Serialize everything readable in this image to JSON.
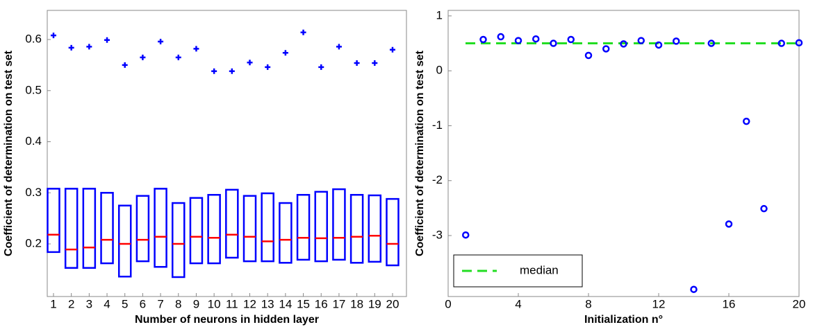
{
  "chart_data": [
    {
      "type": "box",
      "x_label": "Number of neurons in hidden layer",
      "y_label": "Coefficient of determination on test set",
      "x": [
        1,
        2,
        3,
        4,
        5,
        6,
        7,
        8,
        9,
        10,
        11,
        12,
        13,
        14,
        15,
        16,
        17,
        18,
        19,
        20
      ],
      "q1": [
        0.184,
        0.153,
        0.153,
        0.162,
        0.136,
        0.166,
        0.155,
        0.135,
        0.162,
        0.162,
        0.173,
        0.166,
        0.166,
        0.163,
        0.169,
        0.166,
        0.169,
        0.163,
        0.165,
        0.158
      ],
      "median": [
        0.218,
        0.189,
        0.193,
        0.208,
        0.2,
        0.208,
        0.214,
        0.2,
        0.214,
        0.212,
        0.218,
        0.214,
        0.205,
        0.208,
        0.212,
        0.211,
        0.212,
        0.214,
        0.216,
        0.2
      ],
      "q3": [
        0.308,
        0.308,
        0.308,
        0.3,
        0.275,
        0.294,
        0.308,
        0.28,
        0.29,
        0.296,
        0.306,
        0.294,
        0.299,
        0.28,
        0.296,
        0.302,
        0.307,
        0.296,
        0.295,
        0.288
      ],
      "outliers": [
        0.608,
        0.584,
        0.586,
        0.599,
        0.55,
        0.565,
        0.596,
        0.565,
        0.582,
        0.538,
        0.538,
        0.555,
        0.546,
        0.574,
        0.614,
        0.546,
        0.586,
        0.554,
        0.554,
        0.58
      ],
      "box_color": "#0000ff",
      "median_color": "#ff0000",
      "xlim": [
        0.65,
        20.78
      ],
      "xticks": [
        1,
        2,
        3,
        4,
        5,
        6,
        7,
        8,
        9,
        10,
        11,
        12,
        13,
        14,
        15,
        16,
        17,
        18,
        19,
        20
      ],
      "ylim": [
        0.097,
        0.657
      ],
      "yticks": [
        0.2,
        0.3,
        0.4,
        0.5,
        0.6
      ]
    },
    {
      "type": "scatter",
      "x_label": "Initialization n°",
      "y_label": "Coefficient of determination on test set",
      "x": [
        1,
        2,
        3,
        4,
        5,
        6,
        7,
        8,
        9,
        10,
        11,
        12,
        13,
        14,
        15,
        16,
        17,
        18,
        19,
        20
      ],
      "values": [
        -2.99,
        0.57,
        0.62,
        0.55,
        0.58,
        0.5,
        0.57,
        0.28,
        0.4,
        0.49,
        0.55,
        0.47,
        0.54,
        -3.98,
        0.5,
        -2.79,
        -0.92,
        -2.51,
        0.5,
        0.51
      ],
      "color": "#0000ff",
      "median": {
        "name": "median",
        "value": 0.5,
        "color": "#22dd22"
      },
      "legend": "lower left",
      "xlim": [
        0,
        20
      ],
      "xticks": [
        0,
        4,
        8,
        12,
        16,
        20
      ],
      "ylim": [
        -4.11,
        1.1
      ],
      "yticks": [
        -3,
        -2,
        -1,
        0,
        1
      ]
    }
  ]
}
